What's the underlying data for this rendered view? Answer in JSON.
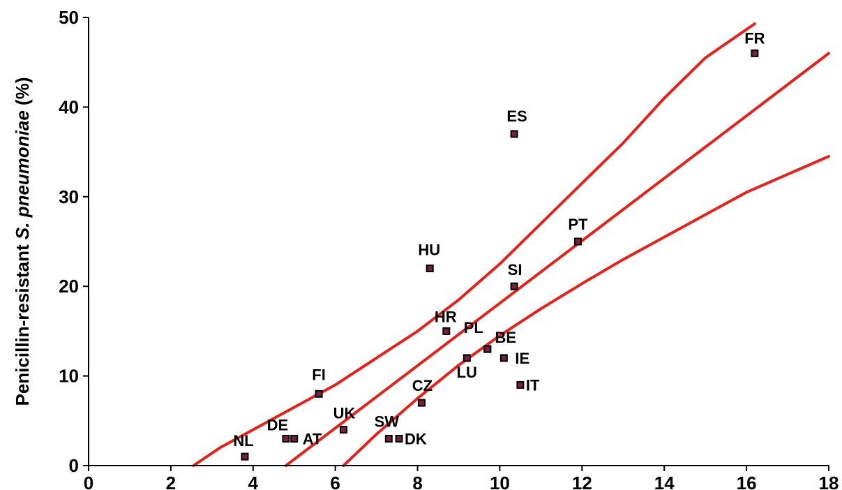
{
  "chart_data": {
    "type": "scatter",
    "title": "",
    "xlabel": "",
    "ylabel_parts": [
      {
        "text": "Penicillin-resistant ",
        "italic": false
      },
      {
        "text": "S. pneumoniae",
        "italic": true
      },
      {
        "text": " (%)",
        "italic": false
      }
    ],
    "xlim": [
      0,
      18
    ],
    "ylim": [
      0,
      50
    ],
    "x_ticks": [
      0,
      2,
      4,
      6,
      8,
      10,
      12,
      14,
      16,
      18
    ],
    "y_ticks": [
      0,
      10,
      20,
      30,
      40,
      50
    ],
    "grid": false,
    "marker_color": "#7a1f3d",
    "line_color": "#e8201a",
    "points": [
      {
        "label": "NL",
        "x": 3.8,
        "y": 1
      },
      {
        "label": "DE",
        "x": 4.8,
        "y": 3
      },
      {
        "label": "AT",
        "x": 5.0,
        "y": 3
      },
      {
        "label": "FI",
        "x": 5.6,
        "y": 8
      },
      {
        "label": "UK",
        "x": 6.2,
        "y": 4
      },
      {
        "label": "SW",
        "x": 7.3,
        "y": 3
      },
      {
        "label": "DK",
        "x": 7.55,
        "y": 3
      },
      {
        "label": "CZ",
        "x": 8.1,
        "y": 7
      },
      {
        "label": "HU",
        "x": 8.3,
        "y": 22
      },
      {
        "label": "HR",
        "x": 8.7,
        "y": 15
      },
      {
        "label": "LU",
        "x": 9.2,
        "y": 12
      },
      {
        "label": "PL",
        "x": 9.7,
        "y": 13
      },
      {
        "label": "BE",
        "x": 9.7,
        "y": 13
      },
      {
        "label": "IE",
        "x": 10.1,
        "y": 12
      },
      {
        "label": "SI",
        "x": 10.35,
        "y": 20
      },
      {
        "label": "ES",
        "x": 10.35,
        "y": 37
      },
      {
        "label": "IT",
        "x": 10.5,
        "y": 9
      },
      {
        "label": "PT",
        "x": 11.9,
        "y": 25
      },
      {
        "label": "FR",
        "x": 16.2,
        "y": 46
      }
    ],
    "regression_line": [
      {
        "x": 4.8,
        "y": 0
      },
      {
        "x": 18,
        "y": 46
      }
    ],
    "upper_band": [
      {
        "x": 2.55,
        "y": 0
      },
      {
        "x": 3.2,
        "y": 2
      },
      {
        "x": 4.0,
        "y": 4
      },
      {
        "x": 5.0,
        "y": 6.5
      },
      {
        "x": 6.0,
        "y": 9
      },
      {
        "x": 7.0,
        "y": 12
      },
      {
        "x": 8.0,
        "y": 15
      },
      {
        "x": 9.0,
        "y": 18.5
      },
      {
        "x": 10.0,
        "y": 22.5
      },
      {
        "x": 11.0,
        "y": 27
      },
      {
        "x": 12.0,
        "y": 31.5
      },
      {
        "x": 13.0,
        "y": 36
      },
      {
        "x": 14.0,
        "y": 41
      },
      {
        "x": 15.0,
        "y": 45.5
      },
      {
        "x": 16.2,
        "y": 49.3
      }
    ],
    "lower_band": [
      {
        "x": 6.2,
        "y": 0
      },
      {
        "x": 7.0,
        "y": 3.5
      },
      {
        "x": 8.0,
        "y": 7.5
      },
      {
        "x": 9.0,
        "y": 11.2
      },
      {
        "x": 10.0,
        "y": 14.5
      },
      {
        "x": 11.0,
        "y": 17.5
      },
      {
        "x": 12.0,
        "y": 20.3
      },
      {
        "x": 13.0,
        "y": 23
      },
      {
        "x": 14.0,
        "y": 25.5
      },
      {
        "x": 15.0,
        "y": 28
      },
      {
        "x": 16.0,
        "y": 30.5
      },
      {
        "x": 17.0,
        "y": 32.5
      },
      {
        "x": 18.0,
        "y": 34.5
      }
    ]
  }
}
